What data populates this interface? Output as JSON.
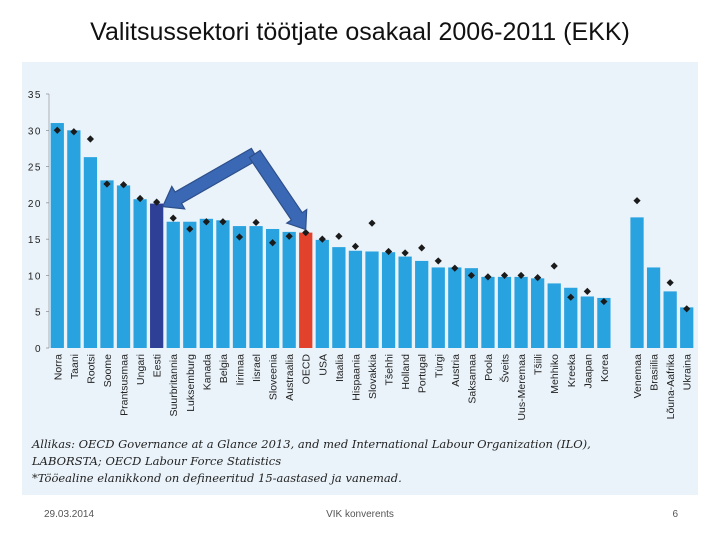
{
  "slide": {
    "title": "Valitsussektori töötjate osakaal 2006-2011 (EKK)",
    "source_line1": "Allikas: OECD Governance at a Glance 2013, and med International Labour Organization (ILO),",
    "source_line2": "LABORSTA; OECD Labour Force Statistics",
    "source_line3": "*Tööealine elanikkond on defineeritud 15-aastased ja vanemad.",
    "footer_date": "29.03.2014",
    "footer_center": "VIK konverents",
    "footer_page": "6"
  },
  "colors": {
    "bar_default": "#29a3df",
    "bar_estonia": "#2e3f96",
    "bar_oecd": "#e2412c",
    "arrow_fill": "#3a68b4",
    "arrow_stroke": "#2d4f8c",
    "marker": "#1b1b1b",
    "axis_text": "#222222",
    "panel_bg": "#eaf3fa"
  },
  "chart_data": {
    "type": "bar",
    "title": "Valitsussektori töötjate osakaal 2006-2011 (EKK)",
    "ylim": [
      0,
      35
    ],
    "yticks": [
      0,
      5,
      10,
      15,
      20,
      25,
      30,
      35
    ],
    "highlight": {
      "Eesti": "estonia",
      "OECD": "oecd"
    },
    "arrow_targets": [
      "Eesti",
      "OECD"
    ],
    "categories": [
      "Norra",
      "Taani",
      "Rootsi",
      "Soome",
      "Prantsusmaa",
      "Ungari",
      "Eesti",
      "Suurbritannia",
      "Luksemburg",
      "Kanada",
      "Belgia",
      "Iirimaa",
      "Iisrael",
      "Sloveenia",
      "Austraalia",
      "OECD",
      "USA",
      "Itaalia",
      "Hispaania",
      "Slovakkia",
      "Tšehhi",
      "Holland",
      "Portugal",
      "Türgi",
      "Austria",
      "Saksamaa",
      "Poola",
      "Šveits",
      "Uus-Meremaa",
      "Tšiili",
      "Mehhiko",
      "Kreeka",
      "Jaapan",
      "Korea",
      null,
      "Venemaa",
      "Brasiilia",
      "Lõuna-Aafrika",
      "Ukraina"
    ],
    "series": [
      {
        "name": "2011",
        "values": [
          31,
          30,
          26.3,
          23.1,
          22.4,
          20.5,
          19.9,
          17.4,
          17.4,
          17.8,
          17.6,
          16.8,
          16.8,
          16.4,
          16.0,
          15.9,
          14.9,
          13.9,
          13.4,
          13.3,
          13.2,
          12.6,
          12.0,
          11.1,
          11.1,
          11.0,
          9.8,
          9.8,
          9.8,
          9.6,
          8.9,
          8.3,
          7.1,
          6.9,
          null,
          18.0,
          11.1,
          7.8,
          5.6
        ]
      },
      {
        "name": "2006",
        "values": [
          30,
          29.8,
          28.8,
          22.6,
          22.5,
          20.6,
          20.1,
          17.9,
          16.4,
          17.4,
          17.4,
          15.3,
          17.3,
          14.5,
          15.4,
          15.9,
          15.0,
          15.4,
          14.0,
          17.2,
          13.3,
          13.1,
          13.8,
          12.0,
          11.0,
          10.0,
          9.8,
          10.0,
          10.0,
          9.7,
          11.3,
          7.0,
          7.8,
          6.4,
          null,
          20.3,
          null,
          9.0,
          5.4
        ]
      }
    ]
  }
}
